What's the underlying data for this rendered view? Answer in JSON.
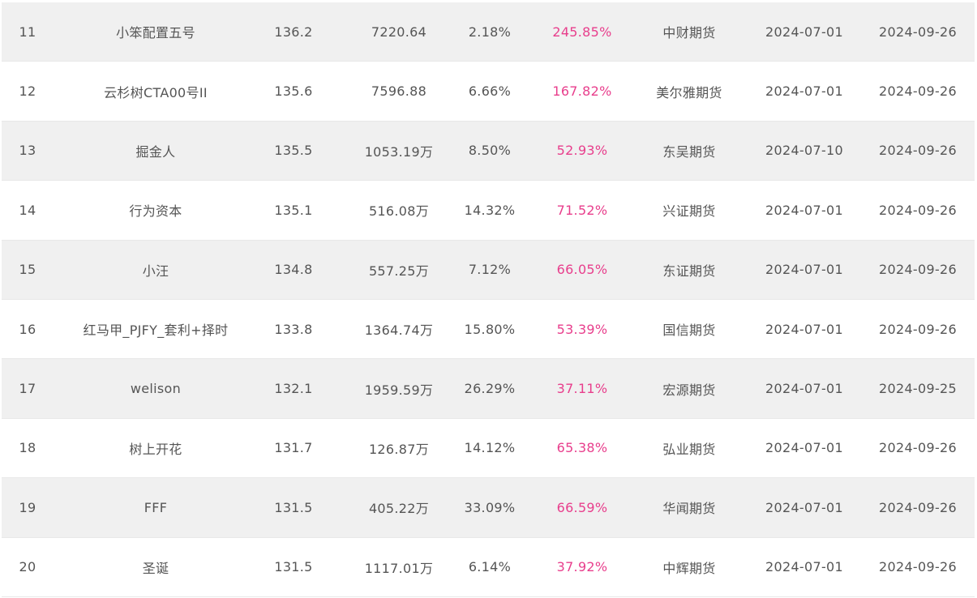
{
  "rows": [
    {
      "rank": "11",
      "name": "小笨配置五号",
      "score": "136.2",
      "amount": "7220.64",
      "drawdown": "2.18%",
      "return": "245.85%",
      "broker": "中财期货",
      "start": "2024-07-01",
      "end": "2024-09-26"
    },
    {
      "rank": "12",
      "name": "云杉树CTA00号II",
      "score": "135.6",
      "amount": "7596.88",
      "drawdown": "6.66%",
      "return": "167.82%",
      "broker": "美尔雅期货",
      "start": "2024-07-01",
      "end": "2024-09-26"
    },
    {
      "rank": "13",
      "name": "掘金人",
      "score": "135.5",
      "amount": "1053.19万",
      "drawdown": "8.50%",
      "return": "52.93%",
      "broker": "东吴期货",
      "start": "2024-07-10",
      "end": "2024-09-26"
    },
    {
      "rank": "14",
      "name": "行为资本",
      "score": "135.1",
      "amount": "516.08万",
      "drawdown": "14.32%",
      "return": "71.52%",
      "broker": "兴证期货",
      "start": "2024-07-01",
      "end": "2024-09-26"
    },
    {
      "rank": "15",
      "name": "小汪",
      "score": "134.8",
      "amount": "557.25万",
      "drawdown": "7.12%",
      "return": "66.05%",
      "broker": "东证期货",
      "start": "2024-07-01",
      "end": "2024-09-26"
    },
    {
      "rank": "16",
      "name": "红马甲_PJFY_套利+择时",
      "score": "133.8",
      "amount": "1364.74万",
      "drawdown": "15.80%",
      "return": "53.39%",
      "broker": "国信期货",
      "start": "2024-07-01",
      "end": "2024-09-26"
    },
    {
      "rank": "17",
      "name": "welison",
      "score": "132.1",
      "amount": "1959.59万",
      "drawdown": "26.29%",
      "return": "37.11%",
      "broker": "宏源期货",
      "start": "2024-07-01",
      "end": "2024-09-25"
    },
    {
      "rank": "18",
      "name": "树上开花",
      "score": "131.7",
      "amount": "126.87万",
      "drawdown": "14.12%",
      "return": "65.38%",
      "broker": "弘业期货",
      "start": "2024-07-01",
      "end": "2024-09-26"
    },
    {
      "rank": "19",
      "name": "FFF",
      "score": "131.5",
      "amount": "405.22万",
      "drawdown": "33.09%",
      "return": "66.59%",
      "broker": "华闻期货",
      "start": "2024-07-01",
      "end": "2024-09-26"
    },
    {
      "rank": "20",
      "name": "圣诞",
      "score": "131.5",
      "amount": "1117.01万",
      "drawdown": "6.14%",
      "return": "37.92%",
      "broker": "中辉期货",
      "start": "2024-07-01",
      "end": "2024-09-26"
    }
  ],
  "colors": {
    "return_text": "#e83e8c",
    "row_odd_bg": "#f0f0f0",
    "row_even_bg": "#ffffff",
    "text": "#555555"
  }
}
